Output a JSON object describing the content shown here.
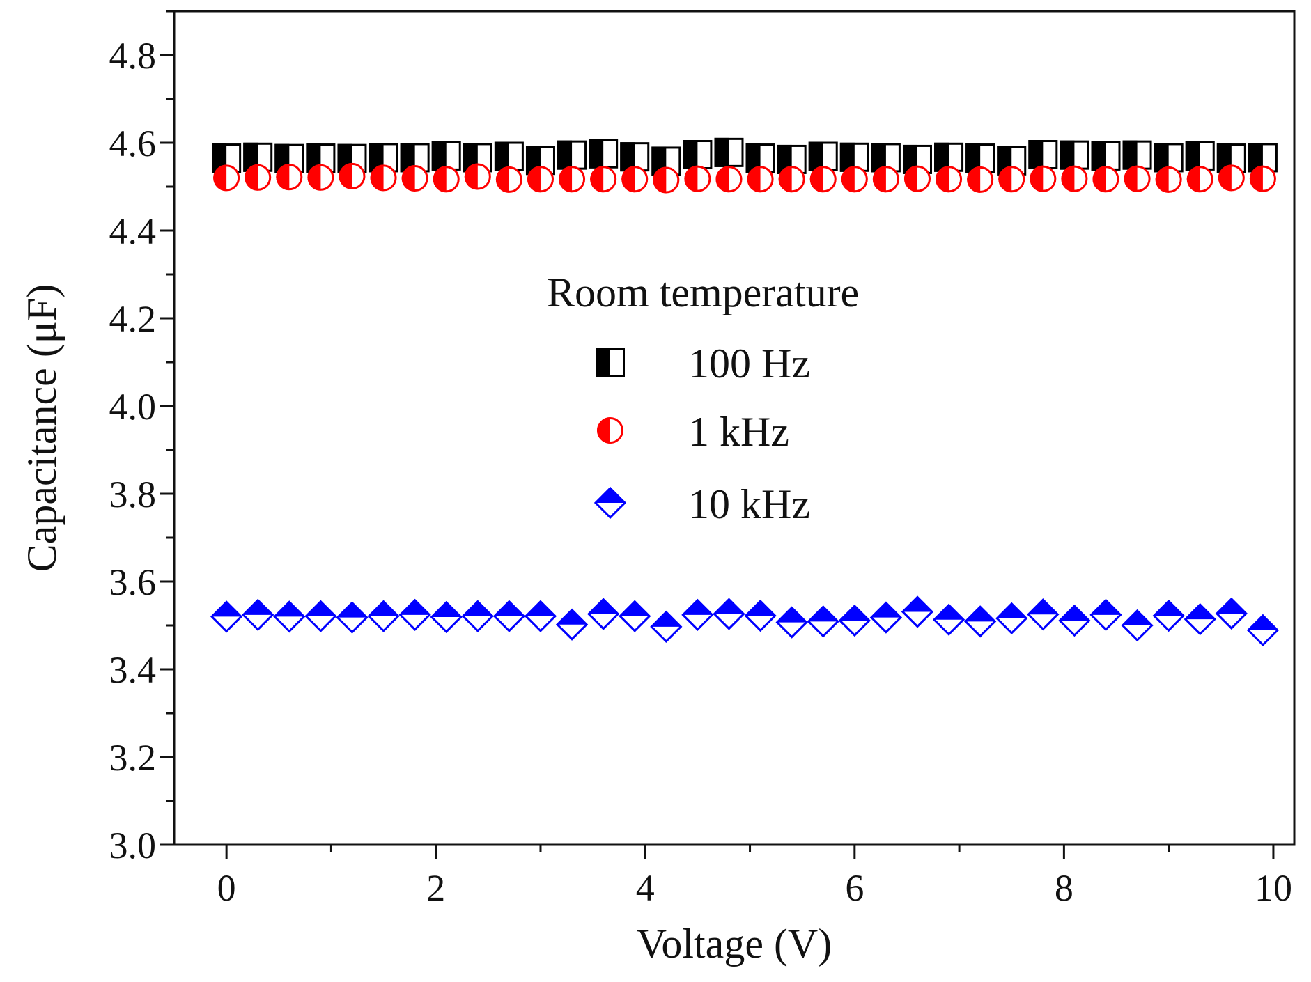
{
  "chart_data": {
    "type": "scatter",
    "title": "",
    "xlabel": "Voltage (V)",
    "ylabel": "Capacitance (μF)",
    "xlim": [
      -0.5,
      10.2
    ],
    "ylim": [
      3.0,
      4.9
    ],
    "x_ticks": [
      0,
      2,
      4,
      6,
      8,
      10
    ],
    "x_tick_labels": [
      "0",
      "2",
      "4",
      "6",
      "8",
      "10"
    ],
    "y_ticks": [
      3.0,
      3.2,
      3.4,
      3.6,
      3.8,
      4.0,
      4.2,
      4.4,
      4.6,
      4.8
    ],
    "y_tick_labels": [
      "3.0",
      "3.2",
      "3.4",
      "3.6",
      "3.8",
      "4.0",
      "4.2",
      "4.4",
      "4.6",
      "4.8"
    ],
    "legend_title": "Room temperature",
    "legend_position": "center",
    "grid": false,
    "x": [
      0,
      0.3,
      0.6,
      0.9,
      1.2,
      1.5,
      1.8,
      2.1,
      2.4,
      2.7,
      3.0,
      3.3,
      3.6,
      3.9,
      4.2,
      4.5,
      4.8,
      5.1,
      5.4,
      5.7,
      6.0,
      6.3,
      6.6,
      6.9,
      7.2,
      7.5,
      7.8,
      8.1,
      8.4,
      8.7,
      9.0,
      9.3,
      9.6,
      9.9
    ],
    "series": [
      {
        "name": "100 Hz",
        "marker": "half-square",
        "color": "#000000",
        "values": [
          4.565,
          4.567,
          4.564,
          4.565,
          4.564,
          4.566,
          4.566,
          4.57,
          4.566,
          4.569,
          4.56,
          4.572,
          4.575,
          4.568,
          4.558,
          4.573,
          4.578,
          4.565,
          4.562,
          4.569,
          4.567,
          4.566,
          4.562,
          4.567,
          4.565,
          4.559,
          4.573,
          4.572,
          4.57,
          4.572,
          4.566,
          4.57,
          4.565,
          4.566
        ]
      },
      {
        "name": "1 kHz",
        "marker": "half-circle",
        "color": "#ff0000",
        "values": [
          4.52,
          4.521,
          4.522,
          4.521,
          4.524,
          4.52,
          4.519,
          4.517,
          4.523,
          4.516,
          4.517,
          4.517,
          4.517,
          4.517,
          4.515,
          4.518,
          4.517,
          4.517,
          4.517,
          4.517,
          4.517,
          4.517,
          4.518,
          4.517,
          4.516,
          4.517,
          4.518,
          4.518,
          4.517,
          4.518,
          4.516,
          4.517,
          4.52,
          4.518
        ]
      },
      {
        "name": "10 kHz",
        "marker": "half-diamond",
        "color": "#0000ff",
        "values": [
          3.52,
          3.524,
          3.52,
          3.521,
          3.518,
          3.521,
          3.524,
          3.519,
          3.521,
          3.521,
          3.521,
          3.502,
          3.526,
          3.521,
          3.497,
          3.524,
          3.526,
          3.522,
          3.507,
          3.509,
          3.511,
          3.518,
          3.531,
          3.513,
          3.509,
          3.516,
          3.525,
          3.511,
          3.524,
          3.5,
          3.522,
          3.514,
          3.527,
          3.489
        ]
      }
    ]
  }
}
